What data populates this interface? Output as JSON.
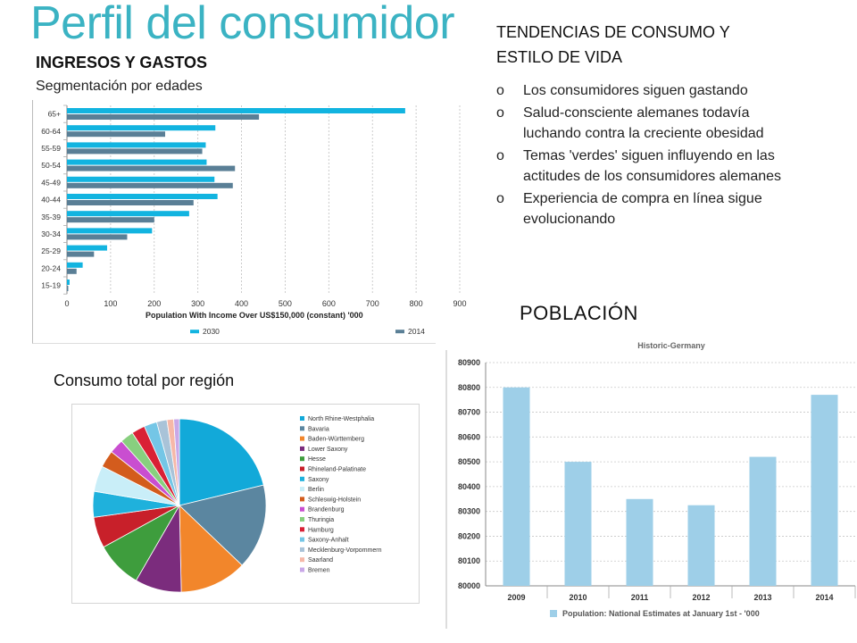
{
  "page": {
    "title": "Perfil del consumidor",
    "ingresos_heading": "INGRESOS Y GASTOS",
    "ingresos_sub": "Segmentación por edades",
    "tendencias_heading": "TENDENCIAS DE CONSUMO Y ESTILO DE VIDA",
    "trends": [
      "Los consumidores siguen gastando",
      "Salud-consciente alemanes todavía luchando contra la creciente obesidad",
      "Temas 'verdes' siguen influyendo en las actitudes de los consumidores alemanes",
      "Experiencia de compra en línea sigue evolucionando"
    ],
    "bullet_glyph": "o",
    "poblacion_heading": "POBLACIÓN",
    "consumo_heading": "Consumo total por región"
  },
  "chart_data": [
    {
      "type": "bar",
      "orientation": "horizontal",
      "categories": [
        "65+",
        "60-64",
        "55-59",
        "50-54",
        "45-49",
        "40-44",
        "35-39",
        "30-34",
        "25-29",
        "20-24",
        "15-19"
      ],
      "series": [
        {
          "name": "2030",
          "color": "#12b4e0",
          "values": [
            775,
            340,
            318,
            320,
            338,
            345,
            280,
            195,
            92,
            36,
            6
          ]
        },
        {
          "name": "2014",
          "color": "#5a7f96",
          "values": [
            440,
            225,
            310,
            385,
            380,
            290,
            200,
            138,
            62,
            22,
            3
          ]
        }
      ],
      "xlabel": "Population With Income Over US$150,000 (constant) '000",
      "xticks": [
        0,
        100,
        200,
        300,
        400,
        500,
        600,
        700,
        800,
        900
      ],
      "xlim": [
        0,
        900
      ],
      "grid": true,
      "legend_position": "bottom"
    },
    {
      "type": "pie",
      "labels": [
        "North Rhine-Westphalia",
        "Bavaria",
        "Baden-Württemberg",
        "Lower Saxony",
        "Hesse",
        "Rhineland-Palatinate",
        "Saxony",
        "Berlin",
        "Schleswig-Holstein",
        "Brandenburg",
        "Thuringia",
        "Hamburg",
        "Saxony-Anhalt",
        "Mecklenburg-Vorpommern",
        "Saarland",
        "Bremen"
      ],
      "values": [
        22,
        16.5,
        13,
        9,
        9,
        6,
        5,
        5,
        3.3,
        2.8,
        2.6,
        2.6,
        2.5,
        2,
        1.3,
        1.1
      ],
      "colors": [
        "#12a9d9",
        "#5b86a0",
        "#f2862b",
        "#7b2c7d",
        "#3e9d3d",
        "#c8202a",
        "#1fb1dc",
        "#c9eef8",
        "#d35c1d",
        "#c94ed0",
        "#88cf7f",
        "#d92135",
        "#74c6e6",
        "#a9c3d8",
        "#f6b8a8",
        "#c9a8e8"
      ],
      "legend_position": "right"
    },
    {
      "type": "bar",
      "title": "Historic-Germany",
      "categories": [
        "2009",
        "2010",
        "2011",
        "2012",
        "2013",
        "2014"
      ],
      "series": [
        {
          "name": "Population: National Estimates at January 1st - '000",
          "color": "#9ecfe8",
          "values": [
            80800,
            80500,
            80350,
            80325,
            80520,
            80770
          ]
        }
      ],
      "yticks": [
        80000,
        80100,
        80200,
        80300,
        80400,
        80500,
        80600,
        80700,
        80800,
        80900
      ],
      "ylim": [
        80000,
        80900
      ],
      "grid": true,
      "legend_position": "bottom"
    }
  ]
}
